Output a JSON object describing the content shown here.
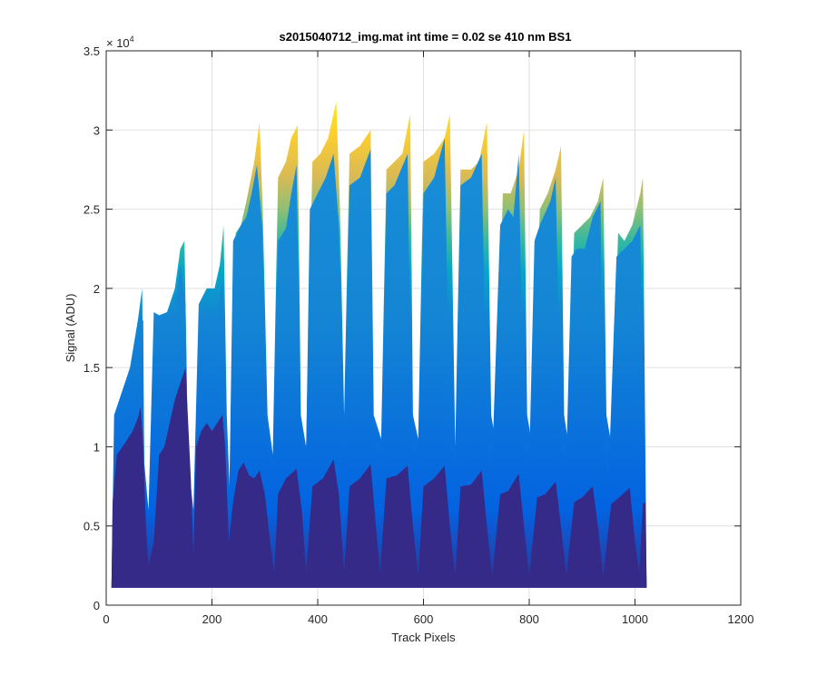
{
  "chart_data": {
    "type": "area",
    "title": "s2015040712_img.mat int time = 0.02 se  410 nm BS1",
    "xlabel": "Track Pixels",
    "ylabel": "Signal (ADU)",
    "xlim": [
      0,
      1200
    ],
    "ylim": [
      0,
      35000
    ],
    "x_ticks": [
      0,
      200,
      400,
      600,
      800,
      1000,
      1200
    ],
    "x_tick_labels": [
      "0",
      "200",
      "400",
      "600",
      "800",
      "1000",
      "1200"
    ],
    "y_ticks": [
      0,
      5000,
      10000,
      15000,
      20000,
      25000,
      30000,
      35000
    ],
    "y_tick_labels": [
      "0",
      "0.5",
      "1",
      "1.5",
      "2",
      "2.5",
      "3",
      "3.5"
    ],
    "y_exponent": "× 10",
    "y_exponent_power": "4",
    "grid": true,
    "legend": "none",
    "baseline": 1100,
    "colormap": [
      "#352a87",
      "#0363e1",
      "#1485d4",
      "#06a7c6",
      "#38b99e",
      "#92bf73",
      "#d9ba56",
      "#fcce2e",
      "#f9fb0e"
    ],
    "series": [
      {
        "values": [
          [
            10,
            1100
          ],
          [
            12,
            6500
          ],
          [
            20,
            9500
          ],
          [
            35,
            10200
          ],
          [
            50,
            11000
          ],
          [
            60,
            11800
          ],
          [
            65,
            12500
          ],
          [
            70,
            10000
          ],
          [
            75,
            5000
          ],
          [
            80,
            2500
          ],
          [
            90,
            4000
          ],
          [
            100,
            9500
          ],
          [
            110,
            10000
          ],
          [
            120,
            11500
          ],
          [
            130,
            13000
          ],
          [
            140,
            14000
          ],
          [
            150,
            15000
          ],
          [
            160,
            8000
          ],
          [
            165,
            3000
          ],
          [
            170,
            10000
          ],
          [
            180,
            11000
          ],
          [
            190,
            11500
          ],
          [
            200,
            11000
          ],
          [
            210,
            11500
          ],
          [
            220,
            12000
          ],
          [
            225,
            10000
          ],
          [
            232,
            4000
          ],
          [
            240,
            6500
          ],
          [
            250,
            8500
          ],
          [
            260,
            9000
          ],
          [
            270,
            8200
          ],
          [
            280,
            8000
          ],
          [
            290,
            8500
          ],
          [
            300,
            7000
          ],
          [
            310,
            4000
          ],
          [
            318,
            2000
          ],
          [
            325,
            7000
          ],
          [
            340,
            8000
          ],
          [
            360,
            8600
          ],
          [
            370,
            6000
          ],
          [
            378,
            2000
          ],
          [
            390,
            7500
          ],
          [
            410,
            8000
          ],
          [
            430,
            9200
          ],
          [
            440,
            7000
          ],
          [
            450,
            2000
          ],
          [
            460,
            7500
          ],
          [
            480,
            8000
          ],
          [
            500,
            8900
          ],
          [
            510,
            5000
          ],
          [
            518,
            2000
          ],
          [
            530,
            8000
          ],
          [
            550,
            8200
          ],
          [
            570,
            8800
          ],
          [
            580,
            5000
          ],
          [
            590,
            1800
          ],
          [
            600,
            7500
          ],
          [
            620,
            8000
          ],
          [
            640,
            8800
          ],
          [
            650,
            5000
          ],
          [
            660,
            1800
          ],
          [
            670,
            7500
          ],
          [
            690,
            7600
          ],
          [
            710,
            8500
          ],
          [
            720,
            5000
          ],
          [
            730,
            1800
          ],
          [
            745,
            7000
          ],
          [
            760,
            7200
          ],
          [
            780,
            8300
          ],
          [
            790,
            5000
          ],
          [
            800,
            1800
          ],
          [
            815,
            6800
          ],
          [
            830,
            7000
          ],
          [
            850,
            7800
          ],
          [
            860,
            5000
          ],
          [
            870,
            1800
          ],
          [
            885,
            6500
          ],
          [
            900,
            6800
          ],
          [
            920,
            7500
          ],
          [
            930,
            5000
          ],
          [
            940,
            1800
          ],
          [
            955,
            6400
          ],
          [
            970,
            6800
          ],
          [
            990,
            7400
          ],
          [
            1000,
            4000
          ],
          [
            1008,
            2000
          ],
          [
            1015,
            6400
          ],
          [
            1020,
            6500
          ],
          [
            1022,
            1100
          ]
        ]
      },
      {
        "values": [
          [
            10,
            1100
          ],
          [
            15,
            9500
          ],
          [
            25,
            12000
          ],
          [
            40,
            13500
          ],
          [
            55,
            15500
          ],
          [
            65,
            17800
          ],
          [
            70,
            18000
          ],
          [
            72,
            8000
          ],
          [
            80,
            5000
          ],
          [
            90,
            16500
          ],
          [
            100,
            17000
          ],
          [
            115,
            17800
          ],
          [
            130,
            18500
          ],
          [
            140,
            21500
          ],
          [
            150,
            19000
          ],
          [
            155,
            8000
          ],
          [
            165,
            5000
          ],
          [
            175,
            17000
          ],
          [
            190,
            17500
          ],
          [
            200,
            18000
          ],
          [
            210,
            18500
          ],
          [
            220,
            20500
          ],
          [
            225,
            10000
          ],
          [
            232,
            5000
          ],
          [
            240,
            23000
          ],
          [
            255,
            24000
          ],
          [
            265,
            24500
          ],
          [
            275,
            26000
          ],
          [
            285,
            27800
          ],
          [
            295,
            24000
          ],
          [
            305,
            10000
          ],
          [
            315,
            8500
          ],
          [
            325,
            23000
          ],
          [
            340,
            23800
          ],
          [
            350,
            26000
          ],
          [
            360,
            27800
          ],
          [
            368,
            10000
          ],
          [
            378,
            9500
          ],
          [
            385,
            25000
          ],
          [
            400,
            26000
          ],
          [
            415,
            27000
          ],
          [
            430,
            28500
          ],
          [
            440,
            24000
          ],
          [
            450,
            10000
          ],
          [
            460,
            26500
          ],
          [
            480,
            27000
          ],
          [
            500,
            28800
          ],
          [
            505,
            10000
          ],
          [
            520,
            9500
          ],
          [
            530,
            26000
          ],
          [
            545,
            26500
          ],
          [
            570,
            28500
          ],
          [
            578,
            10000
          ],
          [
            590,
            9500
          ],
          [
            600,
            26000
          ],
          [
            620,
            27000
          ],
          [
            640,
            29500
          ],
          [
            650,
            10000
          ],
          [
            660,
            9000
          ],
          [
            670,
            26500
          ],
          [
            690,
            27000
          ],
          [
            710,
            28500
          ],
          [
            720,
            10000
          ],
          [
            730,
            9000
          ],
          [
            745,
            24000
          ],
          [
            760,
            25000
          ],
          [
            770,
            24500
          ],
          [
            780,
            28500
          ],
          [
            790,
            10000
          ],
          [
            800,
            9000
          ],
          [
            810,
            23000
          ],
          [
            820,
            24000
          ],
          [
            840,
            25500
          ],
          [
            850,
            27000
          ],
          [
            860,
            10000
          ],
          [
            870,
            9000
          ],
          [
            880,
            22000
          ],
          [
            890,
            22500
          ],
          [
            905,
            22500
          ],
          [
            920,
            24500
          ],
          [
            935,
            25500
          ],
          [
            940,
            10000
          ],
          [
            950,
            8000
          ],
          [
            965,
            22000
          ],
          [
            980,
            22500
          ],
          [
            995,
            23000
          ],
          [
            1010,
            24000
          ],
          [
            1022,
            1100
          ]
        ]
      },
      {
        "values": [
          [
            10,
            1100
          ],
          [
            15,
            12000
          ],
          [
            30,
            13500
          ],
          [
            45,
            15000
          ],
          [
            60,
            18000
          ],
          [
            68,
            20000
          ],
          [
            72,
            9000
          ],
          [
            80,
            6000
          ],
          [
            90,
            18500
          ],
          [
            100,
            18300
          ],
          [
            115,
            18500
          ],
          [
            130,
            20000
          ],
          [
            140,
            22500
          ],
          [
            148,
            23000
          ],
          [
            155,
            9000
          ],
          [
            165,
            6000
          ],
          [
            175,
            19000
          ],
          [
            190,
            20000
          ],
          [
            205,
            20000
          ],
          [
            215,
            21500
          ],
          [
            222,
            24000
          ],
          [
            228,
            12000
          ],
          [
            235,
            6000
          ],
          [
            245,
            23500
          ],
          [
            255,
            24000
          ],
          [
            265,
            25500
          ],
          [
            280,
            28000
          ],
          [
            290,
            30500
          ],
          [
            296,
            25000
          ],
          [
            305,
            12000
          ],
          [
            315,
            9500
          ],
          [
            325,
            27000
          ],
          [
            340,
            28000
          ],
          [
            350,
            29500
          ],
          [
            362,
            30300
          ],
          [
            368,
            12000
          ],
          [
            378,
            10000
          ],
          [
            390,
            28000
          ],
          [
            405,
            28500
          ],
          [
            420,
            29500
          ],
          [
            435,
            31800
          ],
          [
            442,
            25000
          ],
          [
            450,
            12000
          ],
          [
            460,
            28500
          ],
          [
            480,
            29000
          ],
          [
            500,
            30000
          ],
          [
            506,
            12000
          ],
          [
            520,
            10500
          ],
          [
            530,
            27500
          ],
          [
            545,
            28000
          ],
          [
            560,
            28500
          ],
          [
            575,
            31000
          ],
          [
            580,
            12000
          ],
          [
            590,
            10500
          ],
          [
            600,
            28000
          ],
          [
            620,
            28500
          ],
          [
            640,
            29500
          ],
          [
            650,
            31000
          ],
          [
            660,
            10000
          ],
          [
            670,
            27500
          ],
          [
            690,
            27500
          ],
          [
            705,
            28000
          ],
          [
            720,
            30500
          ],
          [
            728,
            12000
          ],
          [
            738,
            10000
          ],
          [
            750,
            26000
          ],
          [
            765,
            26000
          ],
          [
            780,
            27500
          ],
          [
            790,
            30000
          ],
          [
            796,
            12000
          ],
          [
            806,
            10000
          ],
          [
            820,
            25000
          ],
          [
            835,
            26000
          ],
          [
            850,
            27500
          ],
          [
            860,
            29000
          ],
          [
            866,
            12000
          ],
          [
            875,
            10000
          ],
          [
            885,
            23500
          ],
          [
            900,
            24000
          ],
          [
            915,
            24500
          ],
          [
            930,
            25500
          ],
          [
            940,
            27000
          ],
          [
            946,
            12000
          ],
          [
            956,
            10000
          ],
          [
            968,
            23500
          ],
          [
            980,
            23000
          ],
          [
            995,
            24000
          ],
          [
            1010,
            26000
          ],
          [
            1015,
            27000
          ],
          [
            1022,
            1100
          ]
        ]
      }
    ]
  }
}
